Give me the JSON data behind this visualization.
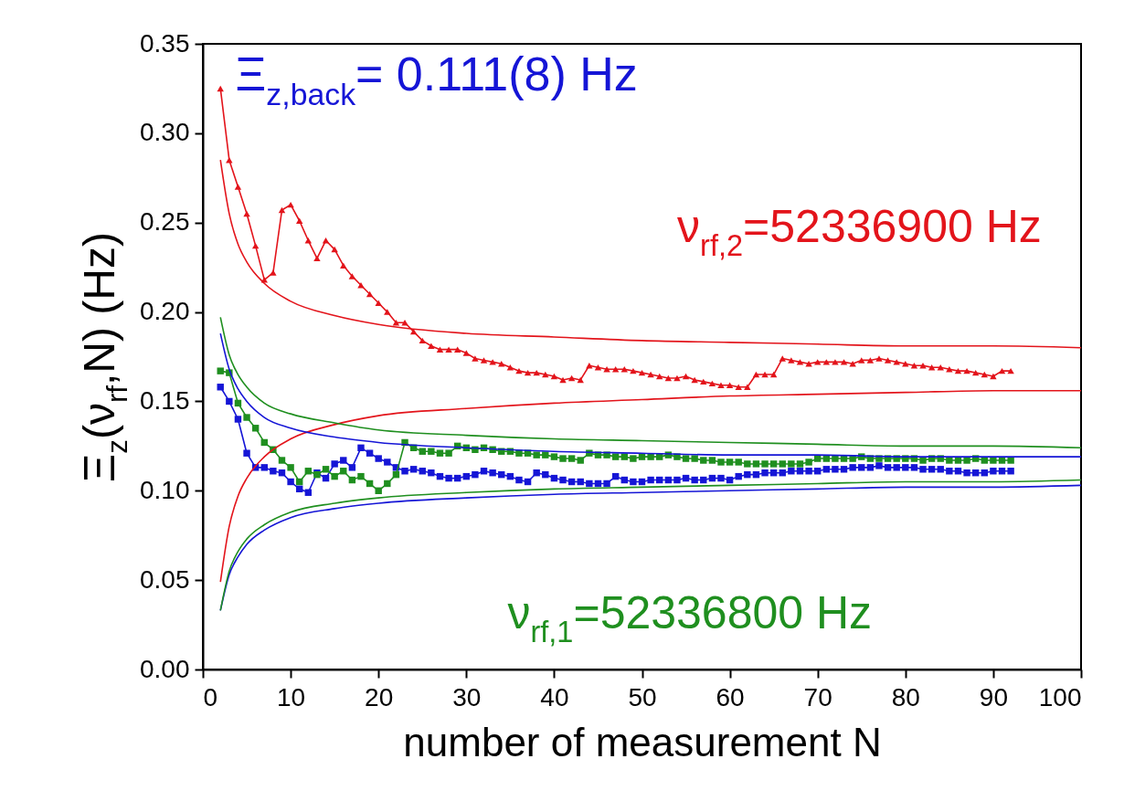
{
  "chart_data": {
    "type": "line",
    "xlabel": "number of measurement N",
    "ylabel": "Ξ$_{z}$(ν$_{rf}$,N) (Hz)",
    "xlim": [
      0,
      100
    ],
    "xticks": [
      0,
      10,
      20,
      30,
      40,
      50,
      60,
      70,
      80,
      90,
      100
    ],
    "ylim": [
      0,
      0.35
    ],
    "yticks": [
      {
        "value": 0,
        "label": "0.00"
      },
      {
        "value": 0.05,
        "label": "0.05"
      },
      {
        "value": 0.1,
        "label": "0.10"
      },
      {
        "value": 0.15,
        "label": "0.15"
      },
      {
        "value": 0.2,
        "label": "0.20"
      },
      {
        "value": 0.25,
        "label": "0.25"
      },
      {
        "value": 0.3,
        "label": "0.30"
      },
      {
        "value": 0.35,
        "label": "0.35"
      }
    ],
    "grid": false,
    "line_style": "solid",
    "series": [
      {
        "name": "Ξ$_{z,back}$= 0.111(8) Hz",
        "color": "#1515d6",
        "marker": "square",
        "x": [
          2,
          3,
          4,
          5,
          6,
          7,
          8,
          9,
          10,
          11,
          12,
          13,
          14,
          15,
          16,
          17,
          18,
          19,
          20,
          21,
          22,
          23,
          24,
          25,
          26,
          27,
          28,
          29,
          30,
          31,
          32,
          33,
          34,
          35,
          36,
          37,
          38,
          39,
          40,
          41,
          42,
          43,
          44,
          45,
          46,
          47,
          48,
          49,
          50,
          51,
          52,
          53,
          54,
          55,
          56,
          57,
          58,
          59,
          60,
          61,
          62,
          63,
          64,
          65,
          66,
          67,
          68,
          69,
          70,
          71,
          72,
          73,
          74,
          75,
          76,
          77,
          78,
          79,
          80,
          81,
          82,
          83,
          84,
          85,
          86,
          87,
          88,
          89,
          90,
          91,
          92
        ],
        "values": [
          0.158,
          0.15,
          0.14,
          0.121,
          0.113,
          0.113,
          0.111,
          0.11,
          0.105,
          0.101,
          0.099,
          0.11,
          0.107,
          0.115,
          0.117,
          0.113,
          0.124,
          0.121,
          0.118,
          0.116,
          0.113,
          0.111,
          0.112,
          0.111,
          0.11,
          0.108,
          0.107,
          0.107,
          0.108,
          0.109,
          0.111,
          0.11,
          0.109,
          0.108,
          0.106,
          0.105,
          0.11,
          0.109,
          0.107,
          0.106,
          0.105,
          0.105,
          0.104,
          0.104,
          0.104,
          0.108,
          0.106,
          0.105,
          0.105,
          0.106,
          0.106,
          0.106,
          0.106,
          0.107,
          0.106,
          0.106,
          0.107,
          0.107,
          0.106,
          0.108,
          0.109,
          0.109,
          0.11,
          0.11,
          0.11,
          0.111,
          0.111,
          0.111,
          0.111,
          0.112,
          0.112,
          0.112,
          0.113,
          0.113,
          0.113,
          0.114,
          0.113,
          0.113,
          0.113,
          0.113,
          0.112,
          0.112,
          0.112,
          0.111,
          0.111,
          0.11,
          0.11,
          0.11,
          0.111,
          0.111,
          0.111
        ]
      },
      {
        "name": "ν$_{rf,2}$=52336900 Hz",
        "color": "#e3141b",
        "marker": "triangle",
        "x": [
          2,
          3,
          4,
          5,
          6,
          7,
          8,
          9,
          10,
          11,
          12,
          13,
          14,
          15,
          16,
          17,
          18,
          19,
          20,
          21,
          22,
          23,
          24,
          25,
          26,
          27,
          28,
          29,
          30,
          31,
          32,
          33,
          34,
          35,
          36,
          37,
          38,
          39,
          40,
          41,
          42,
          43,
          44,
          45,
          46,
          47,
          48,
          49,
          50,
          51,
          52,
          53,
          54,
          55,
          56,
          57,
          58,
          59,
          60,
          61,
          62,
          63,
          64,
          65,
          66,
          67,
          68,
          69,
          70,
          71,
          72,
          73,
          74,
          75,
          76,
          77,
          78,
          79,
          80,
          81,
          82,
          83,
          84,
          85,
          86,
          87,
          88,
          89,
          90,
          91,
          92
        ],
        "values": [
          0.325,
          0.285,
          0.27,
          0.255,
          0.237,
          0.218,
          0.222,
          0.257,
          0.26,
          0.251,
          0.24,
          0.23,
          0.24,
          0.235,
          0.226,
          0.22,
          0.215,
          0.21,
          0.205,
          0.2,
          0.194,
          0.194,
          0.189,
          0.184,
          0.181,
          0.179,
          0.179,
          0.179,
          0.177,
          0.174,
          0.173,
          0.172,
          0.171,
          0.169,
          0.167,
          0.166,
          0.166,
          0.165,
          0.164,
          0.162,
          0.163,
          0.162,
          0.17,
          0.169,
          0.168,
          0.168,
          0.168,
          0.167,
          0.166,
          0.165,
          0.164,
          0.163,
          0.163,
          0.164,
          0.162,
          0.161,
          0.16,
          0.159,
          0.159,
          0.158,
          0.158,
          0.165,
          0.165,
          0.165,
          0.174,
          0.173,
          0.172,
          0.171,
          0.172,
          0.172,
          0.172,
          0.172,
          0.171,
          0.173,
          0.173,
          0.174,
          0.173,
          0.172,
          0.171,
          0.17,
          0.17,
          0.169,
          0.169,
          0.168,
          0.167,
          0.167,
          0.166,
          0.165,
          0.164,
          0.167,
          0.167
        ]
      },
      {
        "name": "ν$_{rf,1}$=52336800 Hz",
        "color": "#1f8f1f",
        "marker": "square",
        "x": [
          2,
          3,
          4,
          5,
          6,
          7,
          8,
          9,
          10,
          11,
          12,
          13,
          14,
          15,
          16,
          17,
          18,
          19,
          20,
          21,
          22,
          23,
          24,
          25,
          26,
          27,
          28,
          29,
          30,
          31,
          32,
          33,
          34,
          35,
          36,
          37,
          38,
          39,
          40,
          41,
          42,
          43,
          44,
          45,
          46,
          47,
          48,
          49,
          50,
          51,
          52,
          53,
          54,
          55,
          56,
          57,
          58,
          59,
          60,
          61,
          62,
          63,
          64,
          65,
          66,
          67,
          68,
          69,
          70,
          71,
          72,
          73,
          74,
          75,
          76,
          77,
          78,
          79,
          80,
          81,
          82,
          83,
          84,
          85,
          86,
          87,
          88,
          89,
          90,
          91,
          92
        ],
        "values": [
          0.167,
          0.166,
          0.149,
          0.141,
          0.135,
          0.127,
          0.123,
          0.117,
          0.113,
          0.105,
          0.111,
          0.109,
          0.112,
          0.108,
          0.111,
          0.106,
          0.108,
          0.104,
          0.1,
          0.104,
          0.109,
          0.127,
          0.124,
          0.122,
          0.122,
          0.121,
          0.121,
          0.125,
          0.124,
          0.123,
          0.124,
          0.123,
          0.122,
          0.122,
          0.121,
          0.121,
          0.12,
          0.12,
          0.119,
          0.118,
          0.118,
          0.117,
          0.121,
          0.12,
          0.12,
          0.119,
          0.119,
          0.118,
          0.119,
          0.119,
          0.119,
          0.12,
          0.119,
          0.118,
          0.118,
          0.117,
          0.117,
          0.116,
          0.116,
          0.116,
          0.115,
          0.115,
          0.115,
          0.115,
          0.115,
          0.115,
          0.115,
          0.116,
          0.118,
          0.118,
          0.118,
          0.118,
          0.118,
          0.119,
          0.118,
          0.118,
          0.118,
          0.118,
          0.118,
          0.118,
          0.117,
          0.118,
          0.118,
          0.117,
          0.117,
          0.117,
          0.118,
          0.117,
          0.117,
          0.117,
          0.117
        ]
      },
      {
        "color": "#e3141b",
        "marker": "none",
        "x": [
          2,
          3,
          4,
          5,
          7,
          10,
          15,
          20,
          30,
          40,
          50,
          60,
          70,
          80,
          90,
          100
        ],
        "values": [
          0.285,
          0.255,
          0.238,
          0.228,
          0.216,
          0.206,
          0.198,
          0.193,
          0.188,
          0.186,
          0.184,
          0.183,
          0.182,
          0.181,
          0.181,
          0.18
        ]
      },
      {
        "color": "#e3141b",
        "marker": "none",
        "x": [
          2,
          3,
          4,
          5,
          7,
          10,
          15,
          20,
          30,
          40,
          50,
          60,
          70,
          80,
          90,
          100
        ],
        "values": [
          0.049,
          0.08,
          0.097,
          0.107,
          0.119,
          0.129,
          0.137,
          0.142,
          0.146,
          0.149,
          0.151,
          0.153,
          0.154,
          0.155,
          0.156,
          0.156
        ]
      },
      {
        "color": "#1515d6",
        "marker": "none",
        "x": [
          2,
          3,
          4,
          5,
          7,
          10,
          15,
          20,
          30,
          40,
          50,
          60,
          70,
          80,
          90,
          100
        ],
        "values": [
          0.188,
          0.168,
          0.157,
          0.15,
          0.141,
          0.135,
          0.13,
          0.127,
          0.124,
          0.122,
          0.121,
          0.12,
          0.12,
          0.119,
          0.119,
          0.119
        ]
      },
      {
        "color": "#1515d6",
        "marker": "none",
        "x": [
          2,
          3,
          4,
          5,
          7,
          10,
          15,
          20,
          30,
          40,
          50,
          60,
          70,
          80,
          90,
          100
        ],
        "values": [
          0.033,
          0.053,
          0.063,
          0.07,
          0.078,
          0.085,
          0.09,
          0.093,
          0.096,
          0.098,
          0.099,
          0.1,
          0.101,
          0.102,
          0.102,
          0.103
        ]
      },
      {
        "color": "#1f8f1f",
        "marker": "none",
        "x": [
          2,
          3,
          4,
          5,
          7,
          10,
          15,
          20,
          30,
          40,
          50,
          60,
          70,
          80,
          90,
          100
        ],
        "values": [
          0.197,
          0.176,
          0.165,
          0.158,
          0.149,
          0.143,
          0.138,
          0.134,
          0.131,
          0.129,
          0.128,
          0.127,
          0.126,
          0.125,
          0.125,
          0.124
        ]
      },
      {
        "color": "#1f8f1f",
        "marker": "none",
        "x": [
          2,
          3,
          4,
          5,
          7,
          10,
          15,
          20,
          30,
          40,
          50,
          60,
          70,
          80,
          90,
          100
        ],
        "values": [
          0.033,
          0.055,
          0.066,
          0.073,
          0.081,
          0.088,
          0.093,
          0.096,
          0.099,
          0.101,
          0.102,
          0.103,
          0.104,
          0.105,
          0.105,
          0.106
        ]
      }
    ]
  }
}
